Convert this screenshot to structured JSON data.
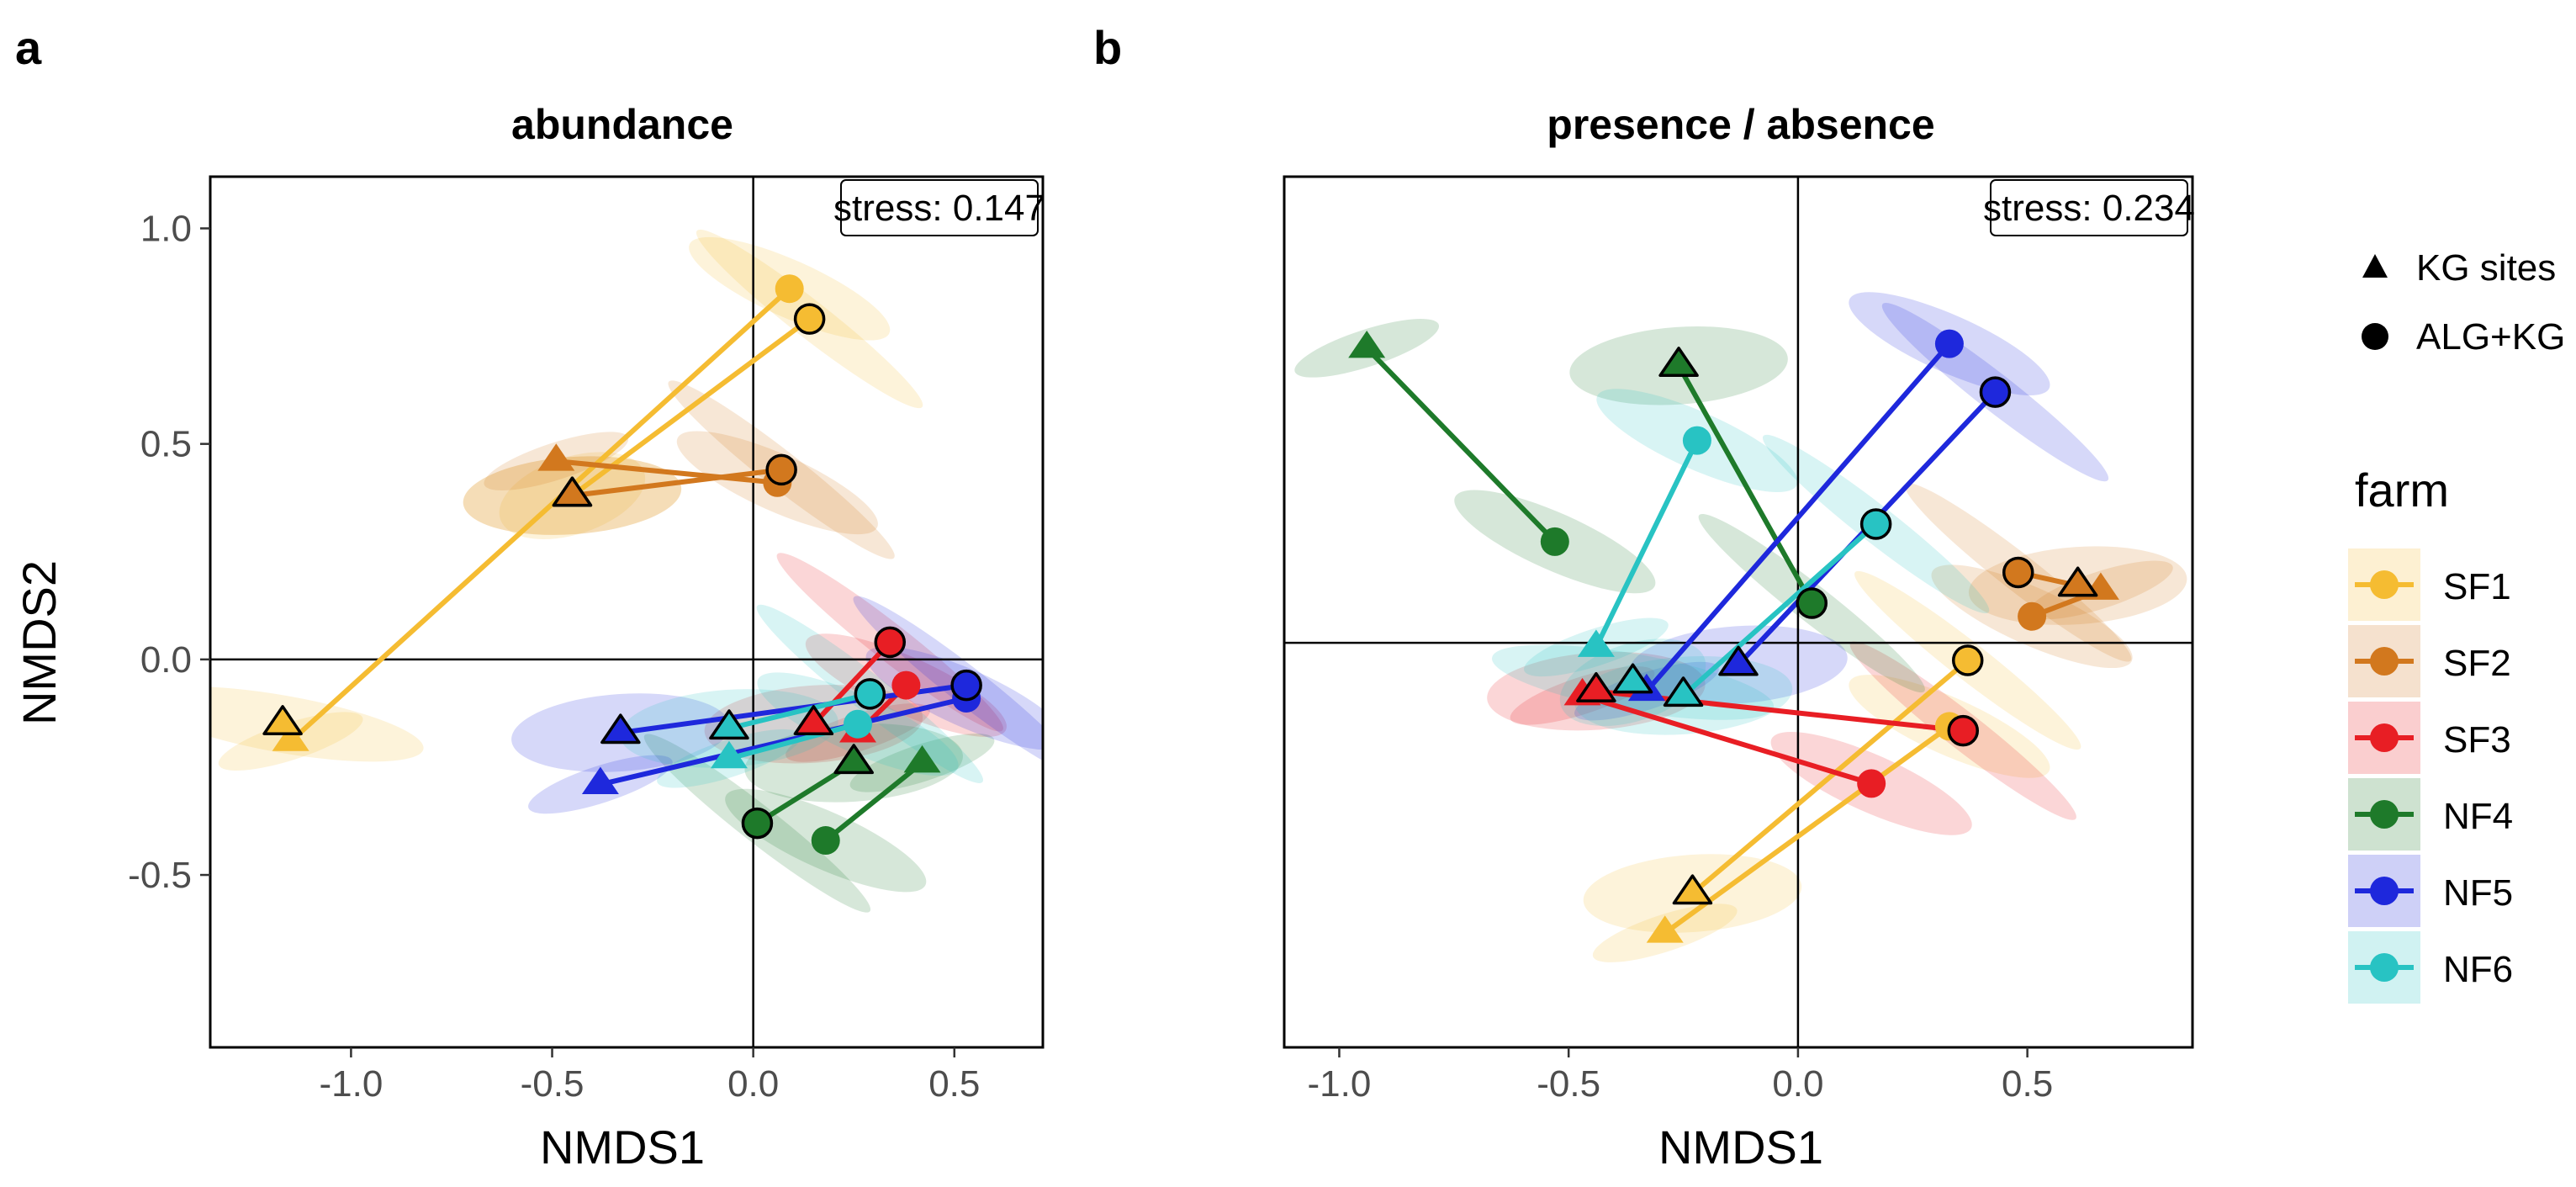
{
  "colors": {
    "SF1": "#F5BC32",
    "SF2": "#D2781E",
    "SF3": "#E81E24",
    "NF4": "#1E7A2A",
    "NF5": "#1E28DC",
    "NF6": "#28C3C3"
  },
  "chart_data": [
    {
      "type": "scatter",
      "panel_label": "a",
      "title": "abundance",
      "xlabel": "NMDS1",
      "ylabel": "NMDS2",
      "xlim": [
        -1.35,
        0.72
      ],
      "ylim": [
        -0.9,
        1.12
      ],
      "xticks": [
        -1.0,
        -0.5,
        0.0,
        0.5
      ],
      "xtick_labels": [
        "-1.0",
        "-0.5",
        "0.0",
        "0.5"
      ],
      "yticks": [
        -0.5,
        0.0,
        0.5,
        1.0
      ],
      "ytick_labels": [
        "-0.5",
        "0.0",
        "0.5",
        "1.0"
      ],
      "stress_label": "stress: 0.147",
      "series": [
        {
          "farm": "SF1",
          "pairs": [
            {
              "kg": [
                -1.15,
                -0.19
              ],
              "alg": [
                0.09,
                0.86
              ],
              "outlined": false
            },
            {
              "kg": [
                -0.45,
                0.38
              ],
              "alg": [
                0.14,
                0.79
              ],
              "outlined": true
            },
            {
              "kg": [
                -1.17,
                -0.15
              ],
              "alg": [
                -0.45,
                0.38
              ],
              "outlined": true,
              "line": false
            }
          ]
        },
        {
          "farm": "SF2",
          "pairs": [
            {
              "kg": [
                -0.49,
                0.46
              ],
              "alg": [
                0.06,
                0.41
              ],
              "outlined": false
            },
            {
              "kg": [
                -0.45,
                0.38
              ],
              "alg": [
                0.07,
                0.44
              ],
              "outlined": true
            }
          ]
        },
        {
          "farm": "SF3",
          "pairs": [
            {
              "kg": [
                0.26,
                -0.17
              ],
              "alg": [
                0.38,
                -0.06
              ],
              "outlined": false
            },
            {
              "kg": [
                0.15,
                -0.15
              ],
              "alg": [
                0.34,
                0.04
              ],
              "outlined": true
            }
          ]
        },
        {
          "farm": "NF4",
          "pairs": [
            {
              "kg": [
                0.42,
                -0.24
              ],
              "alg": [
                0.18,
                -0.42
              ],
              "outlined": false
            },
            {
              "kg": [
                0.25,
                -0.24
              ],
              "alg": [
                0.01,
                -0.38
              ],
              "outlined": true
            }
          ]
        },
        {
          "farm": "NF5",
          "pairs": [
            {
              "kg": [
                -0.38,
                -0.29
              ],
              "alg": [
                0.53,
                -0.09
              ],
              "outlined": false
            },
            {
              "kg": [
                -0.33,
                -0.17
              ],
              "alg": [
                0.53,
                -0.06
              ],
              "outlined": true
            }
          ]
        },
        {
          "farm": "NF6",
          "pairs": [
            {
              "kg": [
                -0.06,
                -0.23
              ],
              "alg": [
                0.26,
                -0.15
              ],
              "outlined": false
            },
            {
              "kg": [
                -0.06,
                -0.16
              ],
              "alg": [
                0.29,
                -0.08
              ],
              "outlined": true
            }
          ]
        }
      ]
    },
    {
      "type": "scatter",
      "panel_label": "b",
      "title": "presence / absence",
      "xlabel": "NMDS1",
      "ylabel": "",
      "xlim": [
        -1.12,
        0.86
      ],
      "ylim": [
        -0.92,
        1.06
      ],
      "xticks": [
        -1.0,
        -0.5,
        0.0,
        0.5
      ],
      "xtick_labels": [
        "-1.0",
        "-0.5",
        "0.0",
        "0.5"
      ],
      "yticks": [],
      "ytick_labels": [],
      "stress_label": "stress: 0.234",
      "series": [
        {
          "farm": "SF1",
          "pairs": [
            {
              "kg": [
                -0.29,
                -0.66
              ],
              "alg": [
                0.33,
                -0.19
              ],
              "outlined": false
            },
            {
              "kg": [
                -0.23,
                -0.57
              ],
              "alg": [
                0.37,
                -0.04
              ],
              "outlined": true
            }
          ]
        },
        {
          "farm": "SF2",
          "pairs": [
            {
              "kg": [
                0.66,
                0.12
              ],
              "alg": [
                0.51,
                0.06
              ],
              "outlined": false
            },
            {
              "kg": [
                0.61,
                0.13
              ],
              "alg": [
                0.48,
                0.16
              ],
              "outlined": true
            }
          ]
        },
        {
          "farm": "SF3",
          "pairs": [
            {
              "kg": [
                -0.47,
                -0.12
              ],
              "alg": [
                0.16,
                -0.32
              ],
              "outlined": false
            },
            {
              "kg": [
                -0.44,
                -0.11
              ],
              "alg": [
                0.36,
                -0.2
              ],
              "outlined": true
            }
          ]
        },
        {
          "farm": "NF4",
          "pairs": [
            {
              "kg": [
                -0.94,
                0.67
              ],
              "alg": [
                -0.53,
                0.23
              ],
              "outlined": false
            },
            {
              "kg": [
                -0.26,
                0.63
              ],
              "alg": [
                0.03,
                0.09
              ],
              "outlined": true
            }
          ]
        },
        {
          "farm": "NF5",
          "pairs": [
            {
              "kg": [
                -0.33,
                -0.11
              ],
              "alg": [
                0.33,
                0.68
              ],
              "outlined": false
            },
            {
              "kg": [
                -0.13,
                -0.05
              ],
              "alg": [
                0.43,
                0.57
              ],
              "outlined": true
            }
          ]
        },
        {
          "farm": "NF6",
          "pairs": [
            {
              "kg": [
                -0.44,
                -0.01
              ],
              "alg": [
                -0.22,
                0.46
              ],
              "outlined": false
            },
            {
              "kg": [
                -0.25,
                -0.12
              ],
              "alg": [
                0.17,
                0.27
              ],
              "outlined": true
            },
            {
              "kg": [
                -0.36,
                -0.09
              ],
              "alg": [
                -0.36,
                -0.09
              ],
              "outlined": true,
              "line": false
            }
          ]
        }
      ]
    }
  ],
  "legend": {
    "shape_title": "",
    "shapes": [
      {
        "shape": "triangle",
        "label": "KG sites"
      },
      {
        "shape": "circle",
        "label": "ALG+KG sites"
      }
    ],
    "farm_title": "farm",
    "farms": [
      "SF1",
      "SF2",
      "SF3",
      "NF4",
      "NF5",
      "NF6"
    ]
  }
}
